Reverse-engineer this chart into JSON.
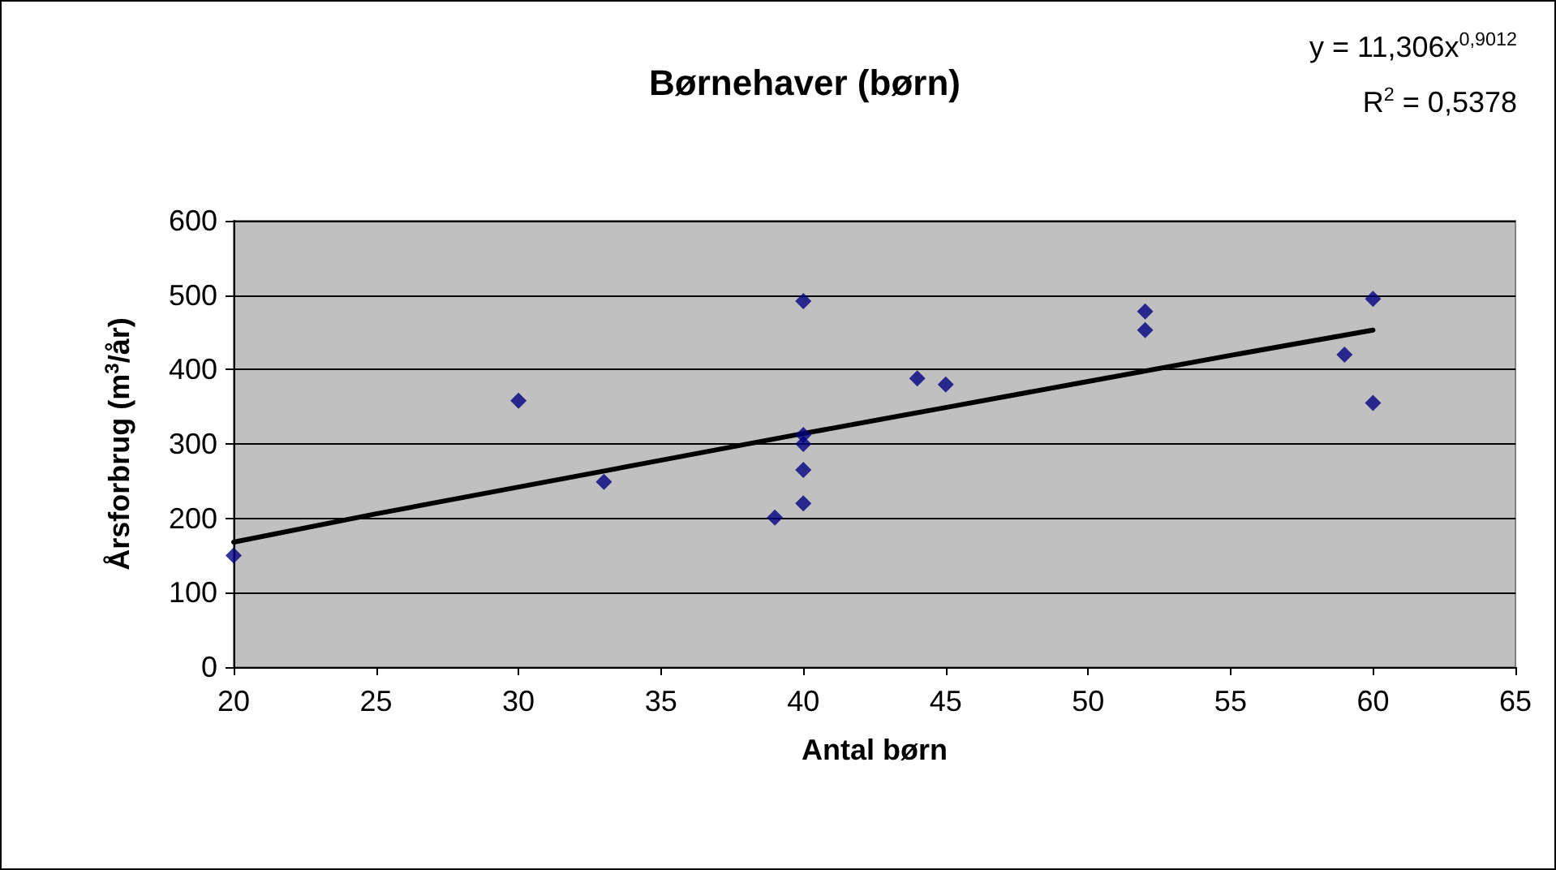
{
  "chart_data": {
    "type": "scatter",
    "title": "Børnehaver (børn)",
    "xlabel": "Antal børn",
    "ylabel": "Årsforbrug (m$^{3}$/år)",
    "annotations": [
      "y = 11,306x$^{0,9012}$",
      "R$^{2}$ = 0,5378"
    ],
    "xlim": [
      20,
      65
    ],
    "xticks": [
      20,
      25,
      30,
      35,
      40,
      45,
      50,
      55,
      60,
      65
    ],
    "ylim": [
      0,
      600
    ],
    "yticks": [
      0,
      100,
      200,
      300,
      400,
      500,
      600
    ],
    "grid": "y",
    "legend": false,
    "series": [
      {
        "type": "scatter",
        "color": "#000080",
        "marker": "diamond",
        "x": [
          20,
          30,
          33,
          39,
          40,
          40,
          40,
          40,
          40,
          44,
          45,
          52,
          52,
          59,
          60,
          60
        ],
        "values": [
          150,
          358,
          249,
          201,
          492,
          312,
          300,
          265,
          220,
          388,
          380,
          478,
          453,
          420,
          495,
          355
        ]
      },
      {
        "type": "line",
        "color": "#000000",
        "marker": "none",
        "line_style": "solid",
        "x": [
          20,
          25,
          30,
          35,
          40,
          45,
          50,
          55,
          60
        ],
        "values": [
          168,
          206,
          242,
          278,
          314,
          349,
          384,
          419,
          453
        ]
      }
    ]
  }
}
